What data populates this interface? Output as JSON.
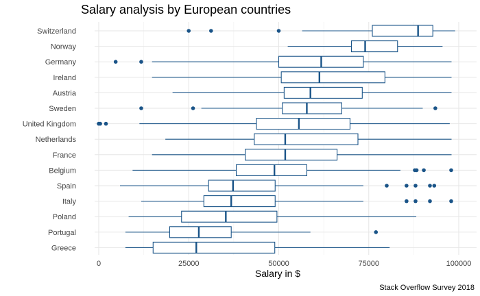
{
  "chart_data": {
    "type": "boxplot",
    "orientation": "horizontal",
    "title": "Salary analysis by European countries",
    "xlabel": "Salary in $",
    "ylabel": "",
    "caption": "Stack Overflow Survey 2018",
    "xlim": [
      -2500,
      102500
    ],
    "x_ticks": [
      0,
      25000,
      50000,
      75000,
      100000
    ],
    "x_tick_labels": [
      "0",
      "25000",
      "50000",
      "75000",
      "100000"
    ],
    "grid": true,
    "color": "#1a5488",
    "categories": [
      "Switzerland",
      "Norway",
      "Germany",
      "Ireland",
      "Austria",
      "Sweden",
      "United Kingdom",
      "Netherlands",
      "France",
      "Belgium",
      "Spain",
      "Italy",
      "Poland",
      "Portugal",
      "Greece"
    ],
    "boxes": [
      {
        "name": "Switzerland",
        "whisker_low": 56500,
        "q1": 76000,
        "median": 88700,
        "q3": 92800,
        "whisker_high": 99000,
        "outliers": [
          25000,
          31200,
          50000
        ]
      },
      {
        "name": "Norway",
        "whisker_low": 52500,
        "q1": 70200,
        "median": 74000,
        "q3": 83000,
        "whisker_high": 95500,
        "outliers": []
      },
      {
        "name": "Germany",
        "whisker_low": 14800,
        "q1": 50000,
        "median": 61800,
        "q3": 73500,
        "whisker_high": 98000,
        "outliers": [
          4700,
          11800
        ]
      },
      {
        "name": "Ireland",
        "whisker_low": 14800,
        "q1": 50700,
        "median": 61300,
        "q3": 79500,
        "whisker_high": 98000,
        "outliers": []
      },
      {
        "name": "Austria",
        "whisker_low": 20500,
        "q1": 51500,
        "median": 58800,
        "q3": 73200,
        "whisker_high": 98000,
        "outliers": []
      },
      {
        "name": "Sweden",
        "whisker_low": 28500,
        "q1": 51000,
        "median": 57800,
        "q3": 67500,
        "whisker_high": 90000,
        "outliers": [
          11800,
          26200,
          93500
        ]
      },
      {
        "name": "United Kingdom",
        "whisker_low": 11300,
        "q1": 43800,
        "median": 55600,
        "q3": 69800,
        "whisker_high": 97500,
        "outliers": [
          0,
          400,
          2000
        ]
      },
      {
        "name": "Netherlands",
        "whisker_low": 18500,
        "q1": 43200,
        "median": 51800,
        "q3": 72000,
        "whisker_high": 98000,
        "outliers": []
      },
      {
        "name": "France",
        "whisker_low": 14800,
        "q1": 40700,
        "median": 51800,
        "q3": 66200,
        "whisker_high": 98000,
        "outliers": []
      },
      {
        "name": "Belgium",
        "whisker_low": 9400,
        "q1": 38200,
        "median": 48800,
        "q3": 57800,
        "whisker_high": 83800,
        "outliers": [
          87800,
          88300,
          90300,
          97900
        ]
      },
      {
        "name": "Spain",
        "whisker_low": 5900,
        "q1": 30500,
        "median": 37300,
        "q3": 49000,
        "whisker_high": 73500,
        "outliers": [
          80000,
          85500,
          88000,
          92000,
          93200
        ]
      },
      {
        "name": "Italy",
        "whisker_low": 11800,
        "q1": 29200,
        "median": 36800,
        "q3": 49000,
        "whisker_high": 73500,
        "outliers": [
          85500,
          88000,
          92000,
          97900
        ]
      },
      {
        "name": "Poland",
        "whisker_low": 8300,
        "q1": 23000,
        "median": 35300,
        "q3": 49500,
        "whisker_high": 88200,
        "outliers": []
      },
      {
        "name": "Portugal",
        "whisker_low": 7400,
        "q1": 19700,
        "median": 27800,
        "q3": 36800,
        "whisker_high": 58800,
        "outliers": [
          77000
        ]
      },
      {
        "name": "Greece",
        "whisker_low": 7400,
        "q1": 15100,
        "median": 27100,
        "q3": 48900,
        "whisker_high": 80800,
        "outliers": []
      }
    ]
  }
}
